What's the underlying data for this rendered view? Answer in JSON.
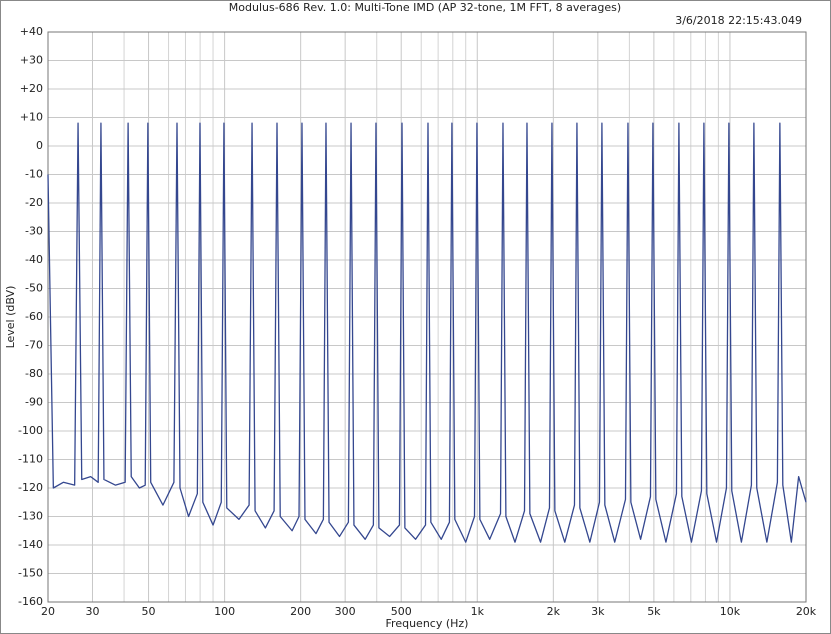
{
  "chart_data": {
    "type": "line",
    "title": "Modulus-686 Rev. 1.0: Multi-Tone IMD (AP 32-tone, 1M FFT, 8 averages)",
    "timestamp": "3/6/2018 22:15:43.049",
    "logo": "AP",
    "xlabel": "Frequency (Hz)",
    "ylabel": "Level (dBV)",
    "xscale": "log",
    "grid": true,
    "color": "#34478f",
    "xlim": [
      20,
      20000
    ],
    "ylim": [
      -160,
      40
    ],
    "xticks": [
      20,
      30,
      50,
      100,
      200,
      300,
      500,
      {
        "value": 1000,
        "label": "1k"
      },
      {
        "value": 2000,
        "label": "2k"
      },
      {
        "value": 3000,
        "label": "3k"
      },
      {
        "value": 5000,
        "label": "5k"
      },
      {
        "value": 10000,
        "label": "10k"
      },
      {
        "value": 20000,
        "label": "20k"
      }
    ],
    "xgrid_minor": [
      40,
      60,
      70,
      80,
      90,
      400,
      600,
      700,
      800,
      900,
      4000,
      6000,
      7000,
      8000,
      9000
    ],
    "yticks": [
      {
        "value": 40,
        "label": "+40"
      },
      {
        "value": 30,
        "label": "+30"
      },
      {
        "value": 20,
        "label": "+20"
      },
      {
        "value": 10,
        "label": "+10"
      },
      0,
      -10,
      -20,
      -30,
      -40,
      -50,
      -60,
      -70,
      -80,
      -90,
      -100,
      -110,
      -120,
      -130,
      -140,
      -150,
      -160
    ],
    "x": [
      20,
      21,
      23,
      25.5,
      26.3,
      27.2,
      29.5,
      31.6,
      32.4,
      33.3,
      37,
      40.4,
      41.5,
      42.7,
      46,
      48.5,
      49.7,
      51,
      57,
      63,
      64.8,
      66.6,
      72,
      78,
      79.9,
      82,
      90,
      97,
      99.4,
      102,
      114,
      125,
      128.4,
      132,
      145,
      157,
      161.2,
      166,
      185,
      197,
      202.4,
      208,
      230,
      246,
      251.9,
      259,
      285,
      309,
      316.5,
      325,
      360,
      388,
      397.3,
      408,
      450,
      492,
      503.6,
      517,
      570,
      624,
      638.2,
      655,
      720,
      776,
      793.7,
      815,
      900,
      975,
      997,
      1024,
      1120,
      1236,
      1264,
      1298,
      1410,
      1538,
      1573,
      1615,
      1780,
      1931,
      1975,
      2028,
      2220,
      2425,
      2480,
      2547,
      2790,
      3045,
      3114,
      3198,
      3500,
      3860,
      3948,
      4054,
      4430,
      4847,
      4957,
      5090,
      5580,
      6142,
      6281,
      6450,
      7040,
      7713,
      7888,
      8100,
      8850,
      9687,
      9906,
      10170,
      11100,
      12160,
      12440,
      12770,
      14000,
      15410,
      15763,
      16190,
      17500,
      18700,
      20000
    ],
    "values": [
      -10,
      -120,
      -118,
      -119,
      8,
      -117,
      -116,
      -118,
      8,
      -117,
      -119,
      -118,
      8,
      -116,
      -120,
      -119,
      8,
      -118,
      -126,
      -118,
      8,
      -120,
      -130,
      -122,
      8,
      -125,
      -133,
      -125,
      8,
      -127,
      -131,
      -126,
      8,
      -128,
      -134,
      -128,
      8,
      -130,
      -135,
      -130,
      8,
      -131,
      -136,
      -131,
      8,
      -132,
      -137,
      -132,
      8,
      -133,
      -138,
      -133,
      8,
      -134,
      -137,
      -133,
      8,
      -134,
      -138,
      -133,
      8,
      -132,
      -138,
      -132,
      8,
      -131,
      -139,
      -130,
      8,
      -131,
      -138,
      -129,
      8,
      -130,
      -139,
      -128,
      8,
      -129,
      -139,
      -127,
      8,
      -128,
      -139,
      -126,
      8,
      -127,
      -139,
      -125,
      8,
      -126,
      -139,
      -124,
      8,
      -125,
      -138,
      -123,
      8,
      -124,
      -139,
      -122,
      8,
      -123,
      -139,
      -121,
      8,
      -122,
      -139,
      -120,
      8,
      -121,
      -139,
      -119,
      8,
      -120,
      -139,
      -118,
      8,
      -119,
      -139,
      -116,
      -125
    ]
  }
}
